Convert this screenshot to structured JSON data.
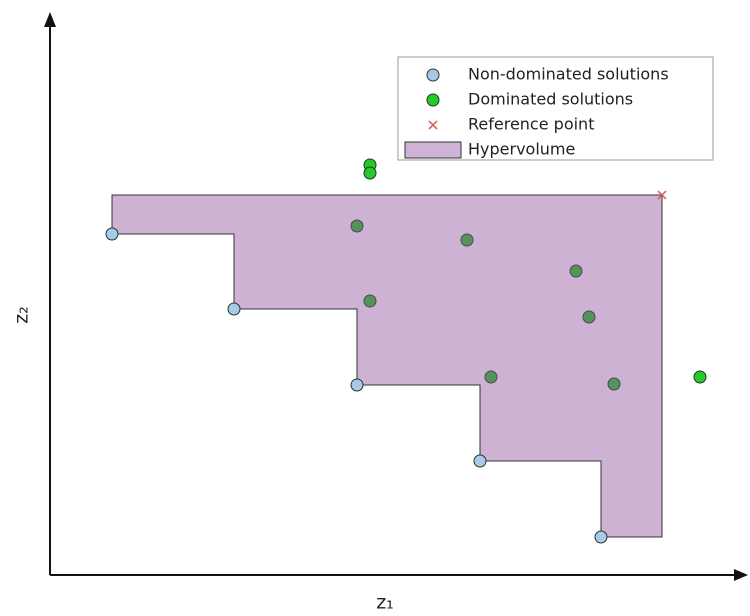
{
  "chart_data": {
    "type": "scatter",
    "xlabel": "z₁",
    "ylabel": "z₂",
    "xlim": [
      0,
      69.5
    ],
    "ylim": [
      0,
      56.3
    ],
    "legend": "upper right",
    "series": [
      {
        "name": "Non-dominated solutions",
        "marker": "circle",
        "color": "#a9c9ea",
        "x": [
          6.2,
          18.4,
          30.7,
          43,
          55.1
        ],
        "values": [
          34.1,
          26.6,
          19,
          11.4,
          3.8
        ]
      },
      {
        "name": "Dominated solutions",
        "marker": "circle",
        "color": "#22cc22",
        "x": [
          32,
          32,
          30.7,
          41.7,
          52.6,
          32,
          53.9,
          44.1,
          56.4,
          65
        ],
        "values": [
          41,
          40.2,
          34.9,
          33.5,
          30.4,
          27.4,
          25.8,
          19.8,
          19.1,
          19.8
        ]
      },
      {
        "name": "Reference point",
        "marker": "x",
        "color": "#e05555",
        "x": [
          61.2
        ],
        "values": [
          38
        ]
      },
      {
        "name": "Hypervolume",
        "marker": "area",
        "color": "#cfb2d7"
      }
    ]
  }
}
